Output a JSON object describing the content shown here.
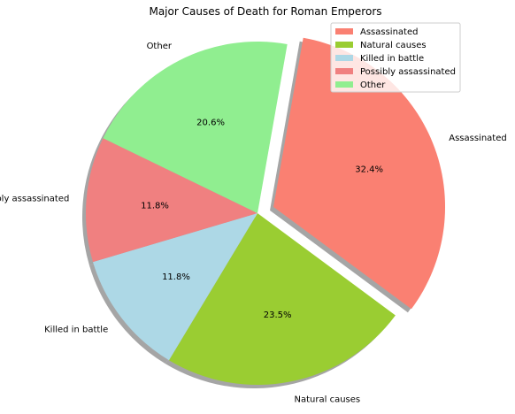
{
  "chart_data": {
    "type": "pie",
    "title": "Major Causes of Death for Roman Emperors",
    "legend_position": "top-right",
    "shadow": true,
    "start_angle_deg": 80,
    "counterclockwise": false,
    "slices": [
      {
        "label": "Assassinated",
        "percent": 32.4,
        "percent_label": "32.4%",
        "color": "#FA8072",
        "exploded": true
      },
      {
        "label": "Natural causes",
        "percent": 23.5,
        "percent_label": "23.5%",
        "color": "#9ACD32",
        "exploded": false
      },
      {
        "label": "Killed in battle",
        "percent": 11.8,
        "percent_label": "11.8%",
        "color": "#ADD8E6",
        "exploded": false
      },
      {
        "label": "Possibly assassinated",
        "percent": 11.8,
        "percent_label": "11.8%",
        "color": "#F08080",
        "exploded": false
      },
      {
        "label": "Other",
        "percent": 20.6,
        "percent_label": "20.6%",
        "color": "#90EE90",
        "exploded": false
      }
    ]
  }
}
